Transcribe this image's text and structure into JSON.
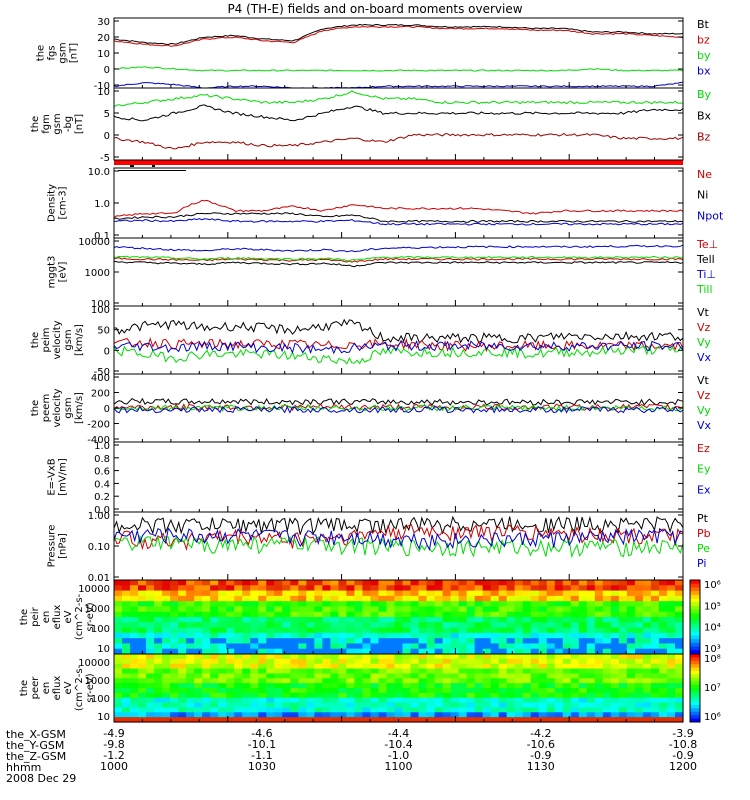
{
  "title": "P4 (TH-E) fields and on-board moments overview",
  "colors": {
    "black": "#000000",
    "red": "#cc0000",
    "green": "#00dd00",
    "blue": "#0000cc",
    "maroon": "#990000"
  },
  "chart_data": [
    {
      "type": "line",
      "ylabel": [
        "the",
        "fgs",
        "gsm",
        "[nT]"
      ],
      "yticks": [
        "30",
        "20",
        "10",
        "0",
        "-10"
      ],
      "ylim": [
        -10,
        30
      ],
      "series": [
        {
          "name": "Bt",
          "color": "#000000",
          "values": [
            18,
            16,
            15,
            19,
            20,
            18,
            17,
            24,
            26,
            26,
            26,
            25,
            25,
            25,
            24,
            24,
            22,
            22,
            21,
            21
          ]
        },
        {
          "name": "bz",
          "color": "#cc0000",
          "values": [
            17,
            15,
            14,
            18,
            19,
            17,
            16,
            23,
            25,
            25,
            25,
            24,
            24,
            24,
            23,
            23,
            21,
            21,
            20,
            19
          ]
        },
        {
          "name": "by",
          "color": "#00dd00",
          "values": [
            1,
            2,
            1,
            0,
            0,
            0,
            0,
            0,
            0,
            0,
            0,
            0,
            0,
            0,
            0,
            0,
            1,
            0,
            0,
            0
          ]
        },
        {
          "name": "bx",
          "color": "#0000cc",
          "values": [
            -9,
            -7,
            -8,
            -10,
            -9,
            -9,
            -10,
            -10,
            -10,
            -9,
            -9,
            -9,
            -9,
            -9,
            -9,
            -9,
            -9,
            -9,
            -9,
            -7
          ]
        }
      ]
    },
    {
      "type": "line",
      "ylabel": [
        "the",
        "fgm",
        "gsm",
        "-bg",
        "[nT]"
      ],
      "yticks": [
        "10",
        "5",
        "0",
        "-5"
      ],
      "ylim": [
        -7,
        13
      ],
      "series": [
        {
          "name": "By",
          "color": "#00dd00",
          "values": [
            8,
            9,
            10,
            11,
            10,
            9,
            9,
            10,
            12,
            10,
            10,
            9,
            9,
            9,
            9,
            9,
            9,
            9,
            9,
            9
          ]
        },
        {
          "name": "Bx",
          "color": "#000000",
          "values": [
            5,
            4,
            6,
            8,
            6,
            5,
            4,
            6,
            8,
            6,
            6,
            6,
            6,
            6,
            6,
            6,
            6,
            6,
            7,
            7
          ]
        },
        {
          "name": "Bz",
          "color": "#990000",
          "values": [
            -1,
            -2,
            -4,
            -2,
            -2,
            -3,
            -3,
            -2,
            -1,
            -2,
            0,
            0,
            0,
            0,
            0,
            0,
            0,
            -1,
            -1,
            -1
          ]
        }
      ]
    },
    {
      "type": "line",
      "ylabel": [
        "Density",
        "[cm-3]"
      ],
      "yticks": [
        "10.0",
        "1.0",
        "0.1"
      ],
      "log": true,
      "ylim": [
        0.1,
        10
      ],
      "series": [
        {
          "name": "Ne",
          "color": "#cc0000",
          "values": [
            0.4,
            0.5,
            0.5,
            1.2,
            0.6,
            0.6,
            0.8,
            0.6,
            0.9,
            0.7,
            0.7,
            0.7,
            0.7,
            0.6,
            0.5,
            0.6,
            0.6,
            0.6,
            0.6,
            0.6
          ]
        },
        {
          "name": "Ni",
          "color": "#000000",
          "values": [
            0.35,
            0.4,
            0.4,
            0.5,
            0.5,
            0.5,
            0.5,
            0.4,
            0.45,
            0.3,
            0.3,
            0.3,
            0.3,
            0.3,
            0.3,
            0.3,
            0.3,
            0.3,
            0.3,
            0.3
          ]
        },
        {
          "name": "Npot",
          "color": "#0000cc",
          "values": [
            0.3,
            0.32,
            0.3,
            0.35,
            0.3,
            0.3,
            0.3,
            0.3,
            0.32,
            0.25,
            0.25,
            0.25,
            0.25,
            0.25,
            0.25,
            0.25,
            0.25,
            0.25,
            0.25,
            0.25
          ]
        }
      ]
    },
    {
      "type": "line",
      "ylabel": [
        "mggt3",
        "[eV]"
      ],
      "yticks": [
        "10000",
        "1000",
        "100"
      ],
      "log": true,
      "ylim": [
        100,
        10000
      ],
      "series": [
        {
          "name": "Te⊥",
          "color": "#cc0000",
          "values": [
            2500,
            2400,
            2300,
            2200,
            2400,
            2300,
            2200,
            2300,
            2000,
            2400,
            2400,
            2400,
            2400,
            2400,
            2400,
            2400,
            2400,
            2400,
            2400,
            2400
          ]
        },
        {
          "name": "Tell",
          "color": "#000000",
          "values": [
            2000,
            1900,
            1800,
            1700,
            1900,
            1800,
            1700,
            1800,
            1500,
            1900,
            1900,
            1900,
            1900,
            1900,
            1900,
            1900,
            1900,
            1900,
            1900,
            1900
          ]
        },
        {
          "name": "Ti⊥",
          "color": "#0000cc",
          "values": [
            5500,
            5000,
            4500,
            4200,
            4800,
            4500,
            4200,
            4500,
            4000,
            5000,
            5200,
            5400,
            5500,
            5500,
            5600,
            5500,
            5600,
            5700,
            5800,
            5800
          ]
        },
        {
          "name": "Till",
          "color": "#00dd00",
          "values": [
            2800,
            2700,
            2600,
            2400,
            2600,
            2500,
            2400,
            2500,
            2200,
            2700,
            2700,
            2700,
            2700,
            2700,
            2700,
            2700,
            2700,
            2700,
            2700,
            2700
          ]
        }
      ]
    },
    {
      "type": "line",
      "ylabel": [
        "the",
        "peim",
        "velocity",
        "gsm",
        "[km/s]"
      ],
      "yticks": [
        "100",
        "50",
        "0",
        "-50"
      ],
      "ylim": [
        -70,
        100
      ],
      "series": [
        {
          "name": "Vt",
          "color": "#000000",
          "values": [
            40,
            50,
            55,
            45,
            50,
            45,
            40,
            50,
            55,
            20,
            20,
            20,
            20,
            20,
            20,
            25,
            25,
            25,
            25,
            25
          ]
        },
        {
          "name": "Vz",
          "color": "#cc0000",
          "values": [
            5,
            10,
            5,
            5,
            5,
            5,
            5,
            0,
            5,
            5,
            5,
            0,
            0,
            0,
            0,
            0,
            0,
            0,
            0,
            0
          ]
        },
        {
          "name": "Vy",
          "color": "#00dd00",
          "values": [
            -10,
            -20,
            -30,
            -20,
            -20,
            -20,
            -25,
            -30,
            -40,
            -15,
            -15,
            -15,
            -15,
            -15,
            -20,
            -15,
            -15,
            -10,
            -10,
            -10
          ]
        },
        {
          "name": "Vx",
          "color": "#0000cc",
          "values": [
            0,
            0,
            -5,
            0,
            0,
            -5,
            -5,
            -10,
            -5,
            0,
            0,
            0,
            0,
            0,
            0,
            0,
            0,
            0,
            0,
            0
          ]
        }
      ]
    },
    {
      "type": "line",
      "ylabel": [
        "the",
        "peem",
        "velocity",
        "gsm",
        "[km/s]"
      ],
      "yticks": [
        "400",
        "200",
        "0",
        "-200",
        "-400"
      ],
      "ylim": [
        -400,
        400
      ],
      "series": [
        {
          "name": "Vt",
          "color": "#000000",
          "values": [
            70,
            80,
            70,
            75,
            80,
            70,
            75,
            80,
            70,
            75,
            70,
            70,
            70,
            70,
            70,
            70,
            70,
            70,
            70,
            70
          ]
        },
        {
          "name": "Vz",
          "color": "#cc0000",
          "values": [
            10,
            10,
            10,
            10,
            10,
            10,
            10,
            10,
            10,
            10,
            10,
            10,
            10,
            10,
            10,
            10,
            10,
            10,
            10,
            10
          ]
        },
        {
          "name": "Vy",
          "color": "#00dd00",
          "values": [
            0,
            0,
            0,
            0,
            0,
            0,
            0,
            0,
            0,
            0,
            0,
            0,
            0,
            0,
            0,
            0,
            0,
            0,
            0,
            0
          ]
        },
        {
          "name": "Vx",
          "color": "#0000cc",
          "values": [
            -20,
            -20,
            -20,
            -20,
            -20,
            -20,
            -20,
            -20,
            -20,
            -20,
            -20,
            -20,
            -20,
            -20,
            -20,
            -20,
            -20,
            -20,
            -20,
            -20
          ]
        }
      ]
    },
    {
      "type": "line",
      "ylabel": [
        "E=-VxB",
        "[mV/m]"
      ],
      "yticks": [
        "1.0",
        "0.8",
        "0.6",
        "0.4",
        "0.2",
        "0.0"
      ],
      "ylim": [
        0,
        1
      ],
      "series": [
        {
          "name": "Ez",
          "color": "#cc0000",
          "values": []
        },
        {
          "name": "Ey",
          "color": "#00dd00",
          "values": []
        },
        {
          "name": "Ex",
          "color": "#0000cc",
          "values": []
        }
      ]
    },
    {
      "type": "line",
      "ylabel": [
        "Pressure",
        "[nPa]"
      ],
      "yticks": [
        "1.00",
        "0.10",
        "0.01"
      ],
      "log": true,
      "ylim": [
        0.01,
        1
      ],
      "series": [
        {
          "name": "Pt",
          "color": "#000000",
          "values": [
            0.45,
            0.45,
            0.45,
            0.45,
            0.45,
            0.45,
            0.45,
            0.45,
            0.45,
            0.45,
            0.45,
            0.47,
            0.47,
            0.48,
            0.48,
            0.48,
            0.48,
            0.48,
            0.48,
            0.48
          ]
        },
        {
          "name": "Pb",
          "color": "#cc0000",
          "values": [
            0.2,
            0.16,
            0.15,
            0.18,
            0.2,
            0.18,
            0.17,
            0.18,
            0.2,
            0.27,
            0.28,
            0.28,
            0.28,
            0.28,
            0.26,
            0.25,
            0.24,
            0.22,
            0.21,
            0.2
          ]
        },
        {
          "name": "Pe",
          "color": "#00dd00",
          "values": [
            0.12,
            0.13,
            0.13,
            0.12,
            0.12,
            0.12,
            0.12,
            0.12,
            0.12,
            0.1,
            0.1,
            0.1,
            0.1,
            0.1,
            0.1,
            0.1,
            0.1,
            0.1,
            0.1,
            0.1
          ]
        },
        {
          "name": "Pi",
          "color": "#0000cc",
          "values": [
            0.2,
            0.22,
            0.22,
            0.2,
            0.22,
            0.2,
            0.19,
            0.2,
            0.2,
            0.17,
            0.17,
            0.16,
            0.16,
            0.16,
            0.17,
            0.18,
            0.18,
            0.2,
            0.21,
            0.22
          ]
        }
      ]
    },
    {
      "type": "heatmap",
      "ylabel": [
        "the",
        "peir",
        "en",
        "eflux",
        "eV",
        "(cm^2-s-",
        "sr-eV)"
      ],
      "yticks": [
        "10000",
        "1000",
        "100",
        "10"
      ],
      "colorbar_ticks": [
        "10⁶",
        "10⁵",
        "10⁴",
        "10³"
      ]
    },
    {
      "type": "heatmap",
      "ylabel": [
        "the",
        "peer",
        "en",
        "eflux",
        "eV",
        "(cm^2-s-",
        "sr-eV)"
      ],
      "yticks": [
        "10000",
        "1000",
        "100",
        "10"
      ],
      "colorbar_ticks": [
        "10⁸",
        "10⁷",
        "10⁶"
      ]
    }
  ],
  "xaxis": {
    "rows": [
      {
        "label": "the_X-GSM",
        "values": [
          "-4.9",
          "-4.6",
          "-4.4",
          "-4.2",
          "-3.9"
        ]
      },
      {
        "label": "the_Y-GSM",
        "values": [
          "-9.8",
          "-10.1",
          "-10.4",
          "-10.6",
          "-10.8"
        ]
      },
      {
        "label": "the_Z-GSM",
        "values": [
          "-1.2",
          "-1.1",
          "-1.0",
          "-0.9",
          "-0.9"
        ]
      },
      {
        "label": "hhmm",
        "values": [
          "1000",
          "1030",
          "1100",
          "1130",
          "1200"
        ]
      }
    ],
    "date": "2008 Dec 29"
  }
}
